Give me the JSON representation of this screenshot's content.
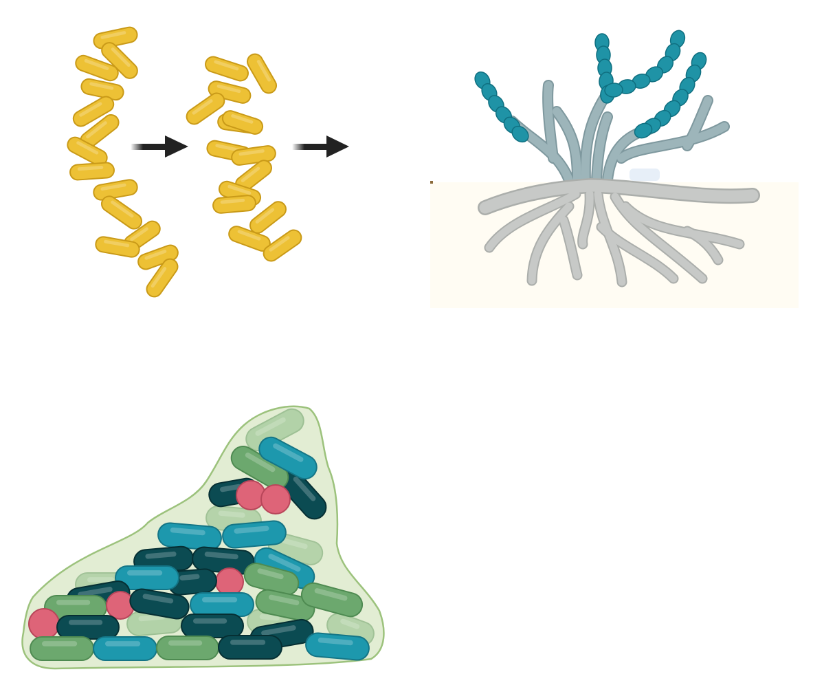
{
  "colors": {
    "yellow_fill": "#EDC135",
    "yellow_stroke": "#C99A18",
    "arrow": "#222222",
    "hyphae_fill": "#9DB5BA",
    "hyphae_stroke": "#7E989E",
    "spore_fill": "#1F93A6",
    "spore_stroke": "#0F6F80",
    "soil_bg": "#FFFCF3",
    "root_fill": "#C7C9C7",
    "root_stroke": "#ABAEAB",
    "biofilm_matrix_fill": "#E2EDD3",
    "biofilm_matrix_stroke": "#9CC27C",
    "dark_teal": "#0B4B52",
    "teal": "#1D98AD",
    "green": "#6CA86E",
    "light_green": "#A2C99A",
    "pink": "#DE6478"
  },
  "panels": [
    {
      "id": "rod-bacteria-division",
      "icons": [
        "bacteria-rod-icon",
        "arrow-right-icon"
      ]
    },
    {
      "id": "streptomyces-mycelium",
      "icons": [
        "aerial-hyphae-icon",
        "spore-chain-icon",
        "substrate-mycelium-icon"
      ]
    },
    {
      "id": "biofilm",
      "icons": [
        "biofilm-matrix-icon",
        "bacteria-rod-icon",
        "coccus-icon"
      ]
    }
  ]
}
